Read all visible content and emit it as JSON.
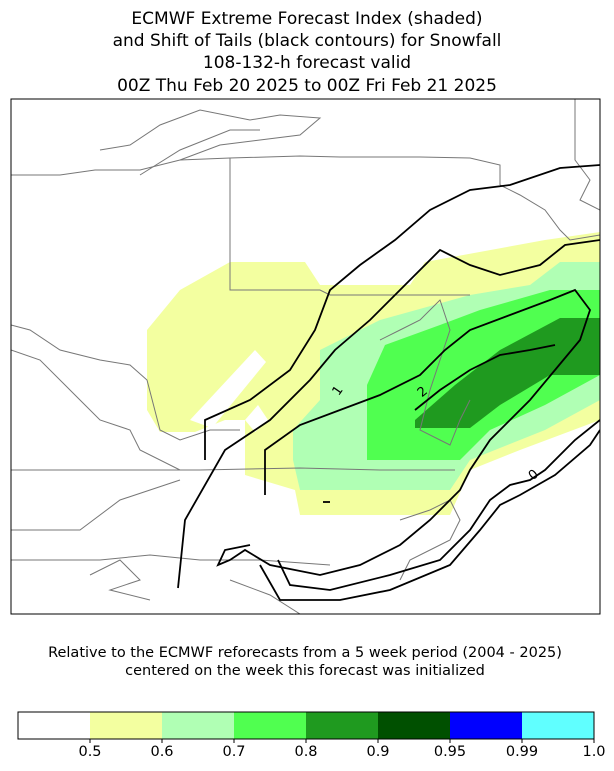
{
  "title": [
    "ECMWF Extreme Forecast Index (shaded)",
    "and Shift of Tails (black contours) for Snowfall",
    "108-132-h forecast valid",
    "00Z Thu Feb 20 2025  to  00Z Fri Feb 21 2025"
  ],
  "map": {
    "contour_labels": [
      1,
      2,
      0
    ]
  },
  "note": [
    "Relative to the ECMWF reforecasts from a 5 week period (2004 - 2025)",
    "centered on the week this forecast was initialized"
  ],
  "colorbar": {
    "colors": [
      "#ffffff",
      "#f3ffa0",
      "#b0ffb4",
      "#50ff50",
      "#1f9a1f",
      "#005000",
      "#0000ff",
      "#60ffff"
    ],
    "ticks": [
      0.5,
      0.6,
      0.7,
      0.8,
      0.9,
      0.95,
      0.99,
      {
        "value": 1,
        "label": "1.0"
      }
    ]
  }
}
